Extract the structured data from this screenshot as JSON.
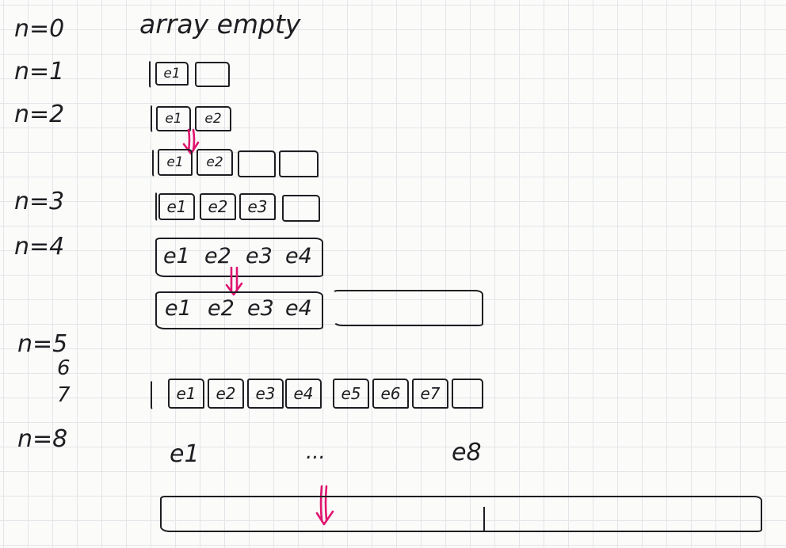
{
  "labels": {
    "n0": "n=0",
    "n1": "n=1",
    "n2": "n=2",
    "n3": "n=3",
    "n4": "n=4",
    "n5": "n=5",
    "n6": "6",
    "n7": "7",
    "n8": "n=8"
  },
  "caption_empty": "array empty",
  "rows": {
    "n1": [
      "e1",
      ""
    ],
    "n2": [
      "e1",
      "e2"
    ],
    "n2_grown": [
      "e1",
      "e2",
      "",
      ""
    ],
    "n3": [
      "e1",
      "e2",
      "e3",
      ""
    ],
    "n4": [
      "e1",
      "e2",
      "e3",
      "e4"
    ],
    "n4_grown": [
      "e1",
      "e2",
      "e3",
      "e4"
    ],
    "n7": [
      "e1",
      "e2",
      "e3",
      "e4",
      "e5",
      "e6",
      "e7",
      ""
    ]
  },
  "n8_row": {
    "first": "e1",
    "dots": "...",
    "last": "e8"
  },
  "colors": {
    "ink": "#1e1e22",
    "arrow": "#e0156f",
    "grid": "#e3e5e8",
    "paper": "#fbfbfa"
  }
}
